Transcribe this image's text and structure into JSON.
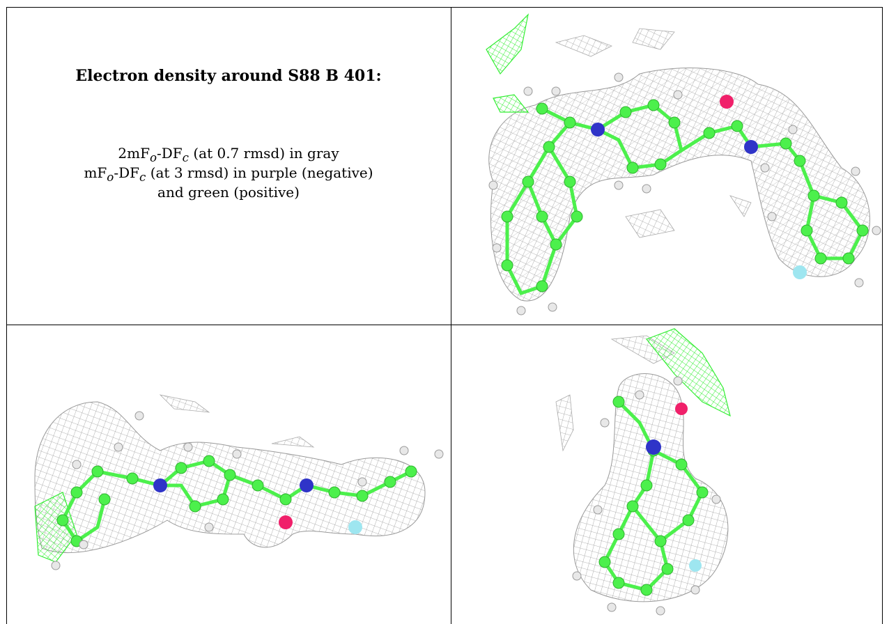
{
  "caption": {
    "title": "Electron density around S88 B 401:",
    "line1_pre": "2mF",
    "line1_sub1": "o",
    "line1_mid": "-DF",
    "line1_sub2": "c",
    "line1_post": " (at 0.7 rmsd) in gray",
    "line2_pre": "mF",
    "line2_sub1": "o",
    "line2_mid": "-DF",
    "line2_sub2": "c",
    "line2_post": " (at 3 rmsd) in purple (negative)",
    "line3": "and green (positive)"
  },
  "colors": {
    "mesh_gray": "#a9a9a9",
    "density_green": "#33ee33",
    "carbon_green": "#4cf04c",
    "nitrogen_blue": "#2f34c8",
    "oxygen_pink": "#f0206a",
    "fluorine_cyan": "#9ee6f0",
    "hydrogen_white": "#e8e8e8"
  },
  "panels": [
    {
      "id": "top-right",
      "icon": "ligand-density-view-1"
    },
    {
      "id": "bottom-left",
      "icon": "ligand-density-view-2"
    },
    {
      "id": "bottom-right",
      "icon": "ligand-density-view-3"
    }
  ]
}
